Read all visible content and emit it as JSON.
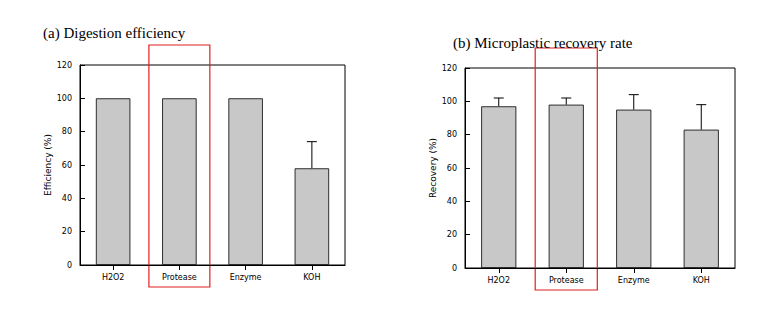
{
  "chart_data": [
    {
      "type": "bar",
      "title": "(a) Digestion efficiency",
      "y_label": "Efficiency (%)",
      "categories": [
        "H2O2",
        "Protease",
        "Enzyme",
        "KOH"
      ],
      "values": [
        100,
        100,
        100,
        58
      ],
      "errors": [
        0,
        0,
        0,
        16
      ],
      "color": "#c8c8c8",
      "ylim": [
        0,
        120
      ],
      "yticks": [
        0,
        20,
        40,
        60,
        80,
        100,
        120
      ],
      "grid": false,
      "highlight": "Protease"
    },
    {
      "type": "bar",
      "title": "(b) Microplastic recovery rate",
      "y_label": "Recovery (%)",
      "categories": [
        "H2O2",
        "Protease",
        "Enzyme",
        "KOH"
      ],
      "values": [
        97,
        98,
        95,
        83
      ],
      "errors": [
        5,
        4,
        9,
        15
      ],
      "color": "#c8c8c8",
      "ylim": [
        0,
        120
      ],
      "yticks": [
        0,
        20,
        40,
        60,
        80,
        100,
        120
      ],
      "grid": false,
      "highlight": "Protease"
    }
  ]
}
